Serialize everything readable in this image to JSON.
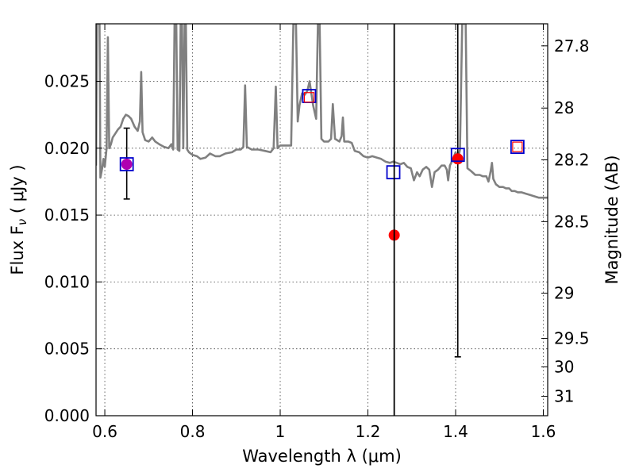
{
  "chart_data": {
    "type": "scatter",
    "xlabel": "Wavelength  λ (μm)",
    "ylabel": "Flux  F",
    "ylabel_sub": "ν",
    "ylabel_unit": "  ( μJy )",
    "ylabel_right": "Magnitude (AB)",
    "xlim": [
      0.58,
      1.61
    ],
    "ylim": [
      0.0,
      0.0293
    ],
    "x_ticks": [
      {
        "value": 0.6,
        "label": "0.6"
      },
      {
        "value": 0.8,
        "label": "0.8"
      },
      {
        "value": 1.0,
        "label": "1"
      },
      {
        "value": 1.2,
        "label": "1.2"
      },
      {
        "value": 1.4,
        "label": "1.4"
      },
      {
        "value": 1.6,
        "label": "1.6"
      }
    ],
    "y_ticks": [
      {
        "value": 0.0,
        "label": "0.000"
      },
      {
        "value": 0.005,
        "label": "0.005"
      },
      {
        "value": 0.01,
        "label": "0.010"
      },
      {
        "value": 0.015,
        "label": "0.015"
      },
      {
        "value": 0.02,
        "label": "0.020"
      },
      {
        "value": 0.025,
        "label": "0.025"
      }
    ],
    "right_ticks": [
      {
        "label": "27.8",
        "flux": 0.02765
      },
      {
        "label": "28",
        "flux": 0.023
      },
      {
        "label": "28.2",
        "flux": 0.01913
      },
      {
        "label": "28.5",
        "flux": 0.01451
      },
      {
        "label": "29",
        "flux": 0.00916
      },
      {
        "label": "29.5",
        "flux": 0.00578
      },
      {
        "label": "30",
        "flux": 0.00365
      },
      {
        "label": "31",
        "flux": 0.00145
      }
    ],
    "grid": true,
    "series": [
      {
        "type": "line",
        "color": "#808080",
        "points": [
          [
            0.58,
            0.0187
          ],
          [
            0.582,
            0.0293
          ],
          [
            0.588,
            0.0293
          ],
          [
            0.59,
            0.0178
          ],
          [
            0.594,
            0.0185
          ],
          [
            0.597,
            0.0192
          ],
          [
            0.6,
            0.0186
          ],
          [
            0.604,
            0.02
          ],
          [
            0.607,
            0.0283
          ],
          [
            0.61,
            0.02
          ],
          [
            0.614,
            0.0203
          ],
          [
            0.618,
            0.0208
          ],
          [
            0.624,
            0.0211
          ],
          [
            0.63,
            0.0214
          ],
          [
            0.636,
            0.0216
          ],
          [
            0.642,
            0.0222
          ],
          [
            0.648,
            0.0225
          ],
          [
            0.654,
            0.0224
          ],
          [
            0.66,
            0.0222
          ],
          [
            0.668,
            0.0216
          ],
          [
            0.675,
            0.0213
          ],
          [
            0.68,
            0.022
          ],
          [
            0.683,
            0.0257
          ],
          [
            0.686,
            0.0212
          ],
          [
            0.692,
            0.0206
          ],
          [
            0.7,
            0.0205
          ],
          [
            0.708,
            0.0208
          ],
          [
            0.715,
            0.0205
          ],
          [
            0.724,
            0.0203
          ],
          [
            0.735,
            0.0201
          ],
          [
            0.745,
            0.02
          ],
          [
            0.752,
            0.0203
          ],
          [
            0.756,
            0.0199
          ],
          [
            0.759,
            0.0293
          ],
          [
            0.763,
            0.0293
          ],
          [
            0.766,
            0.0199
          ],
          [
            0.77,
            0.0198
          ],
          [
            0.773,
            0.0293
          ],
          [
            0.776,
            0.0293
          ],
          [
            0.779,
            0.02
          ],
          [
            0.782,
            0.0293
          ],
          [
            0.785,
            0.0293
          ],
          [
            0.788,
            0.0199
          ],
          [
            0.792,
            0.0197
          ],
          [
            0.8,
            0.0195
          ],
          [
            0.81,
            0.0194
          ],
          [
            0.818,
            0.0192
          ],
          [
            0.83,
            0.0193
          ],
          [
            0.84,
            0.0196
          ],
          [
            0.852,
            0.0194
          ],
          [
            0.862,
            0.0194
          ],
          [
            0.875,
            0.0196
          ],
          [
            0.89,
            0.0197
          ],
          [
            0.9,
            0.0199
          ],
          [
            0.91,
            0.0199
          ],
          [
            0.916,
            0.0201
          ],
          [
            0.92,
            0.0247
          ],
          [
            0.924,
            0.0201
          ],
          [
            0.935,
            0.0199
          ],
          [
            0.95,
            0.0199
          ],
          [
            0.965,
            0.0198
          ],
          [
            0.978,
            0.0197
          ],
          [
            0.985,
            0.02
          ],
          [
            0.99,
            0.0246
          ],
          [
            0.994,
            0.02
          ],
          [
            1.0,
            0.0202
          ],
          [
            1.015,
            0.0202
          ],
          [
            1.025,
            0.0202
          ],
          [
            1.03,
            0.0293
          ],
          [
            1.036,
            0.0293
          ],
          [
            1.04,
            0.022
          ],
          [
            1.044,
            0.0232
          ],
          [
            1.05,
            0.0241
          ],
          [
            1.056,
            0.024
          ],
          [
            1.062,
            0.0243
          ],
          [
            1.067,
            0.025
          ],
          [
            1.075,
            0.0232
          ],
          [
            1.082,
            0.0222
          ],
          [
            1.086,
            0.0293
          ],
          [
            1.09,
            0.0293
          ],
          [
            1.094,
            0.0207
          ],
          [
            1.1,
            0.0205
          ],
          [
            1.11,
            0.0205
          ],
          [
            1.116,
            0.0207
          ],
          [
            1.12,
            0.0233
          ],
          [
            1.125,
            0.0207
          ],
          [
            1.135,
            0.0205
          ],
          [
            1.14,
            0.0209
          ],
          [
            1.143,
            0.0223
          ],
          [
            1.146,
            0.0205
          ],
          [
            1.155,
            0.0205
          ],
          [
            1.163,
            0.0204
          ],
          [
            1.17,
            0.0198
          ],
          [
            1.18,
            0.0197
          ],
          [
            1.19,
            0.0194
          ],
          [
            1.2,
            0.0193
          ],
          [
            1.21,
            0.0194
          ],
          [
            1.22,
            0.0193
          ],
          [
            1.23,
            0.0192
          ],
          [
            1.24,
            0.019
          ],
          [
            1.25,
            0.0189
          ],
          [
            1.258,
            0.019
          ],
          [
            1.266,
            0.0189
          ],
          [
            1.274,
            0.0188
          ],
          [
            1.282,
            0.0189
          ],
          [
            1.29,
            0.0186
          ],
          [
            1.298,
            0.0185
          ],
          [
            1.305,
            0.0176
          ],
          [
            1.312,
            0.0182
          ],
          [
            1.318,
            0.0179
          ],
          [
            1.325,
            0.0184
          ],
          [
            1.333,
            0.0186
          ],
          [
            1.34,
            0.0184
          ],
          [
            1.346,
            0.0171
          ],
          [
            1.352,
            0.0182
          ],
          [
            1.36,
            0.0184
          ],
          [
            1.368,
            0.0187
          ],
          [
            1.375,
            0.0187
          ],
          [
            1.38,
            0.0184
          ],
          [
            1.383,
            0.0176
          ],
          [
            1.387,
            0.0187
          ],
          [
            1.393,
            0.0191
          ],
          [
            1.4,
            0.0197
          ],
          [
            1.405,
            0.0191
          ],
          [
            1.41,
            0.0199
          ],
          [
            1.415,
            0.0293
          ],
          [
            1.423,
            0.0293
          ],
          [
            1.427,
            0.0185
          ],
          [
            1.435,
            0.0183
          ],
          [
            1.445,
            0.018
          ],
          [
            1.455,
            0.018
          ],
          [
            1.462,
            0.0179
          ],
          [
            1.47,
            0.0179
          ],
          [
            1.475,
            0.0175
          ],
          [
            1.48,
            0.0183
          ],
          [
            1.483,
            0.0189
          ],
          [
            1.486,
            0.0177
          ],
          [
            1.492,
            0.0173
          ],
          [
            1.5,
            0.0171
          ],
          [
            1.508,
            0.0171
          ],
          [
            1.515,
            0.017
          ],
          [
            1.522,
            0.017
          ],
          [
            1.528,
            0.0168
          ],
          [
            1.535,
            0.0168
          ],
          [
            1.542,
            0.0167
          ],
          [
            1.55,
            0.0167
          ],
          [
            1.56,
            0.0166
          ],
          [
            1.57,
            0.0165
          ],
          [
            1.58,
            0.0164
          ],
          [
            1.59,
            0.0163
          ],
          [
            1.6,
            0.0163
          ],
          [
            1.61,
            0.0163
          ]
        ]
      },
      {
        "type": "scatter",
        "marker": "circle",
        "color": "#ff0000",
        "points": [
          {
            "x": 0.65,
            "y": 0.0188,
            "err_low": 0.0162,
            "err_high": 0.0215,
            "color": "#b000b0"
          },
          {
            "x": 1.26,
            "y": 0.0135
          },
          {
            "x": 1.405,
            "y": 0.0192,
            "err_low": 0.0044,
            "err_high": 0.0293
          }
        ]
      },
      {
        "type": "scatter",
        "marker": "square",
        "color": "#0000cc",
        "points": [
          {
            "x": 0.65,
            "y": 0.0188
          },
          {
            "x": 1.066,
            "y": 0.0239
          },
          {
            "x": 1.258,
            "y": 0.0182
          },
          {
            "x": 1.405,
            "y": 0.0195
          },
          {
            "x": 1.541,
            "y": 0.0201
          }
        ]
      },
      {
        "type": "scatter",
        "marker": "square",
        "color": "#ff0000",
        "points": [
          {
            "x": 1.066,
            "y": 0.0238
          },
          {
            "x": 1.541,
            "y": 0.0201
          }
        ]
      },
      {
        "type": "vline",
        "color": "#000000",
        "x": 1.26
      }
    ]
  }
}
